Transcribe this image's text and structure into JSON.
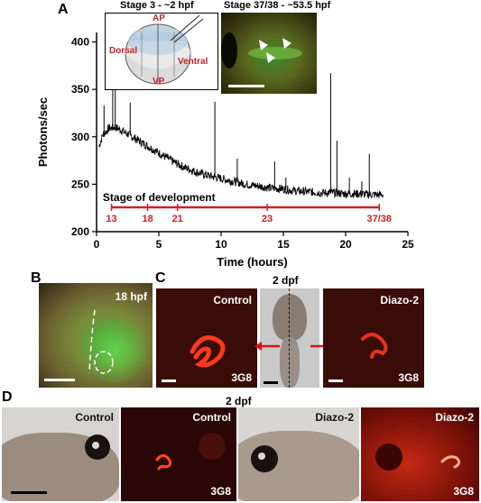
{
  "labels": {
    "A": "A",
    "B": "B",
    "C": "C",
    "D": "D"
  },
  "panelA": {
    "inset1_title": "Stage 3 - ~2 hpf",
    "inset2_title": "Stage 37/38 - ~53.5 hpf",
    "diagram": {
      "ap": "AP",
      "vp": "VP",
      "dorsal": "Dorsal",
      "ventral": "Ventral"
    },
    "stage_caption": "Stage of development",
    "stages": [
      {
        "label": "13",
        "t": 1.2
      },
      {
        "label": "18",
        "t": 4.1
      },
      {
        "label": "21",
        "t": 6.5
      },
      {
        "label": "23",
        "t": 13.7
      },
      {
        "label": "37/38",
        "t": 22.7
      }
    ],
    "colors": {
      "stage": "#cc2222",
      "trace": "#000000"
    }
  },
  "chart_data": {
    "type": "line",
    "xlabel": "Time (hours)",
    "ylabel": "Photons/sec",
    "xlim": [
      0,
      25
    ],
    "ylim": [
      200,
      410
    ],
    "xticks": [
      0,
      5,
      10,
      15,
      20,
      25
    ],
    "yticks": [
      200,
      250,
      300,
      350,
      400
    ],
    "series": [
      {
        "x": [
          0.2,
          0.5,
          1.0,
          1.5,
          2.0,
          3.0,
          4.0,
          5.0,
          6.0,
          7.0,
          8.0,
          9.0,
          10.0,
          11.0,
          12.0,
          13.0,
          14.0,
          15.0,
          16.0,
          17.0,
          18.0,
          19.0,
          20.0,
          21.0,
          22.0,
          23.0
        ],
        "y": [
          290,
          302,
          309,
          310,
          307,
          299,
          291,
          283,
          275,
          268,
          263,
          259,
          256,
          253,
          250,
          248,
          246,
          245,
          243,
          242,
          241,
          241,
          240,
          240,
          239,
          239
        ],
        "spikes": [
          {
            "x": 0.6,
            "y": 333
          },
          {
            "x": 1.3,
            "y": 368
          },
          {
            "x": 1.5,
            "y": 355
          },
          {
            "x": 2.7,
            "y": 336
          },
          {
            "x": 9.5,
            "y": 337
          },
          {
            "x": 11.3,
            "y": 277
          },
          {
            "x": 14.3,
            "y": 274
          },
          {
            "x": 15.2,
            "y": 257
          },
          {
            "x": 18.8,
            "y": 367
          },
          {
            "x": 19.3,
            "y": 296
          },
          {
            "x": 20.3,
            "y": 257
          },
          {
            "x": 21.3,
            "y": 253
          },
          {
            "x": 21.9,
            "y": 282
          }
        ]
      }
    ]
  },
  "panelB": {
    "title": "18 hpf"
  },
  "panelC": {
    "title": "2 dpf",
    "control": "Control",
    "treated": "Diazo-2",
    "marker": "3G8"
  },
  "panelD": {
    "title": "2 dpf",
    "labels": [
      "Control",
      "Control",
      "Diazo-2",
      "Diazo-2"
    ],
    "marker": "3G8"
  }
}
